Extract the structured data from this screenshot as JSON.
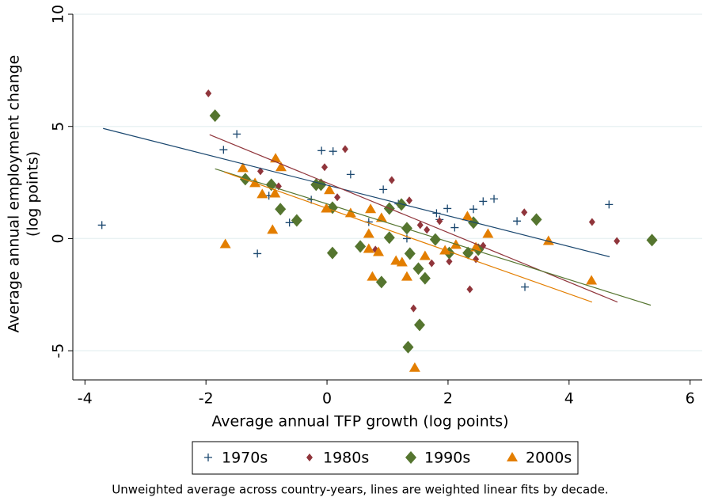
{
  "chart_data": {
    "type": "scatter",
    "xlabel": "Average annual TFP growth (log points)",
    "ylabel": [
      "Average annual employment change",
      "(log points)"
    ],
    "note": "Unweighted average across country-years, lines are weighted linear fits by decade.",
    "xlim": [
      -4.2,
      6.2
    ],
    "xticks": [
      -4,
      -2,
      0,
      2,
      4,
      6
    ],
    "ylim": [
      -6.3,
      10
    ],
    "yticks": [
      -5,
      0,
      5,
      10
    ],
    "grid": true,
    "legend": "bottom",
    "series": [
      {
        "name": "1970s",
        "color": "#1a476f",
        "marker": "plus",
        "x": [
          -3.72,
          -1.71,
          -1.49,
          -1.15,
          -0.96,
          -0.62,
          -0.26,
          -0.09,
          0.1,
          0.39,
          0.69,
          0.93,
          1.18,
          1.32,
          1.81,
          1.86,
          1.99,
          2.11,
          2.42,
          2.58,
          2.76,
          3.14,
          3.27,
          4.66
        ],
        "values": [
          0.6,
          3.96,
          4.66,
          -0.67,
          1.91,
          0.71,
          1.73,
          3.92,
          3.89,
          2.86,
          0.74,
          2.19,
          1.55,
          0.0,
          1.13,
          0.85,
          1.34,
          0.49,
          1.31,
          1.66,
          1.77,
          0.78,
          -2.16,
          1.52
        ],
        "fit": {
          "x": [
            -3.7,
            4.67
          ],
          "y": [
            4.91,
            -0.81
          ]
        }
      },
      {
        "name": "1980s",
        "color": "#90353b",
        "marker": "small-diamond",
        "x": [
          -1.96,
          -1.1,
          -0.8,
          -0.04,
          0.3,
          0.17,
          0.8,
          1.07,
          1.36,
          1.43,
          1.54,
          1.65,
          1.73,
          1.86,
          2.02,
          2.36,
          2.46,
          2.58,
          3.26,
          4.38,
          4.79
        ],
        "values": [
          6.47,
          3.0,
          2.33,
          3.18,
          3.99,
          1.84,
          -0.49,
          2.61,
          1.7,
          -3.11,
          0.6,
          0.39,
          -1.1,
          0.78,
          -1.02,
          -2.26,
          -0.92,
          -0.32,
          1.17,
          0.74,
          -0.11
        ],
        "fit": {
          "x": [
            -1.94,
            4.8
          ],
          "y": [
            4.63,
            -2.83
          ]
        }
      },
      {
        "name": "1990s",
        "color": "#55752f",
        "marker": "diamond",
        "x": [
          -1.85,
          -1.35,
          -0.92,
          -0.77,
          -0.5,
          -0.18,
          -0.1,
          0.09,
          0.09,
          0.55,
          0.9,
          1.03,
          1.03,
          1.23,
          1.32,
          1.37,
          1.34,
          1.51,
          1.53,
          1.62,
          1.79,
          2.02,
          2.33,
          2.42,
          2.5,
          3.46,
          5.37
        ],
        "values": [
          5.48,
          2.65,
          2.4,
          1.31,
          0.81,
          2.4,
          2.4,
          1.38,
          -0.64,
          -0.35,
          -1.94,
          1.34,
          0.04,
          1.52,
          0.46,
          -0.67,
          -4.84,
          -1.34,
          -3.85,
          -1.77,
          -0.04,
          -0.64,
          -0.64,
          0.71,
          -0.49,
          0.85,
          -0.07
        ],
        "fit": {
          "x": [
            -1.85,
            5.35
          ],
          "y": [
            3.11,
            -2.97
          ]
        }
      },
      {
        "name": "2000s",
        "color": "#e37e00",
        "marker": "triangle",
        "x": [
          -1.68,
          -1.39,
          -1.19,
          -1.07,
          -0.9,
          -0.86,
          -0.85,
          -0.76,
          -0.01,
          0.04,
          0.39,
          0.69,
          0.69,
          0.72,
          0.75,
          0.85,
          0.9,
          1.14,
          1.24,
          1.32,
          1.45,
          1.62,
          1.95,
          2.13,
          2.32,
          2.46,
          2.66,
          3.66,
          4.37
        ],
        "values": [
          -0.25,
          3.14,
          2.47,
          1.98,
          0.39,
          2.01,
          3.57,
          3.18,
          1.34,
          2.16,
          1.13,
          0.21,
          -0.46,
          1.31,
          -1.7,
          -0.6,
          0.92,
          -0.99,
          -1.06,
          -1.7,
          -5.76,
          -0.78,
          -0.53,
          -0.28,
          0.99,
          -0.39,
          0.21,
          -0.11,
          -1.87
        ],
        "fit": {
          "x": [
            -1.7,
            4.38
          ],
          "y": [
            2.97,
            -2.83
          ]
        }
      }
    ]
  }
}
